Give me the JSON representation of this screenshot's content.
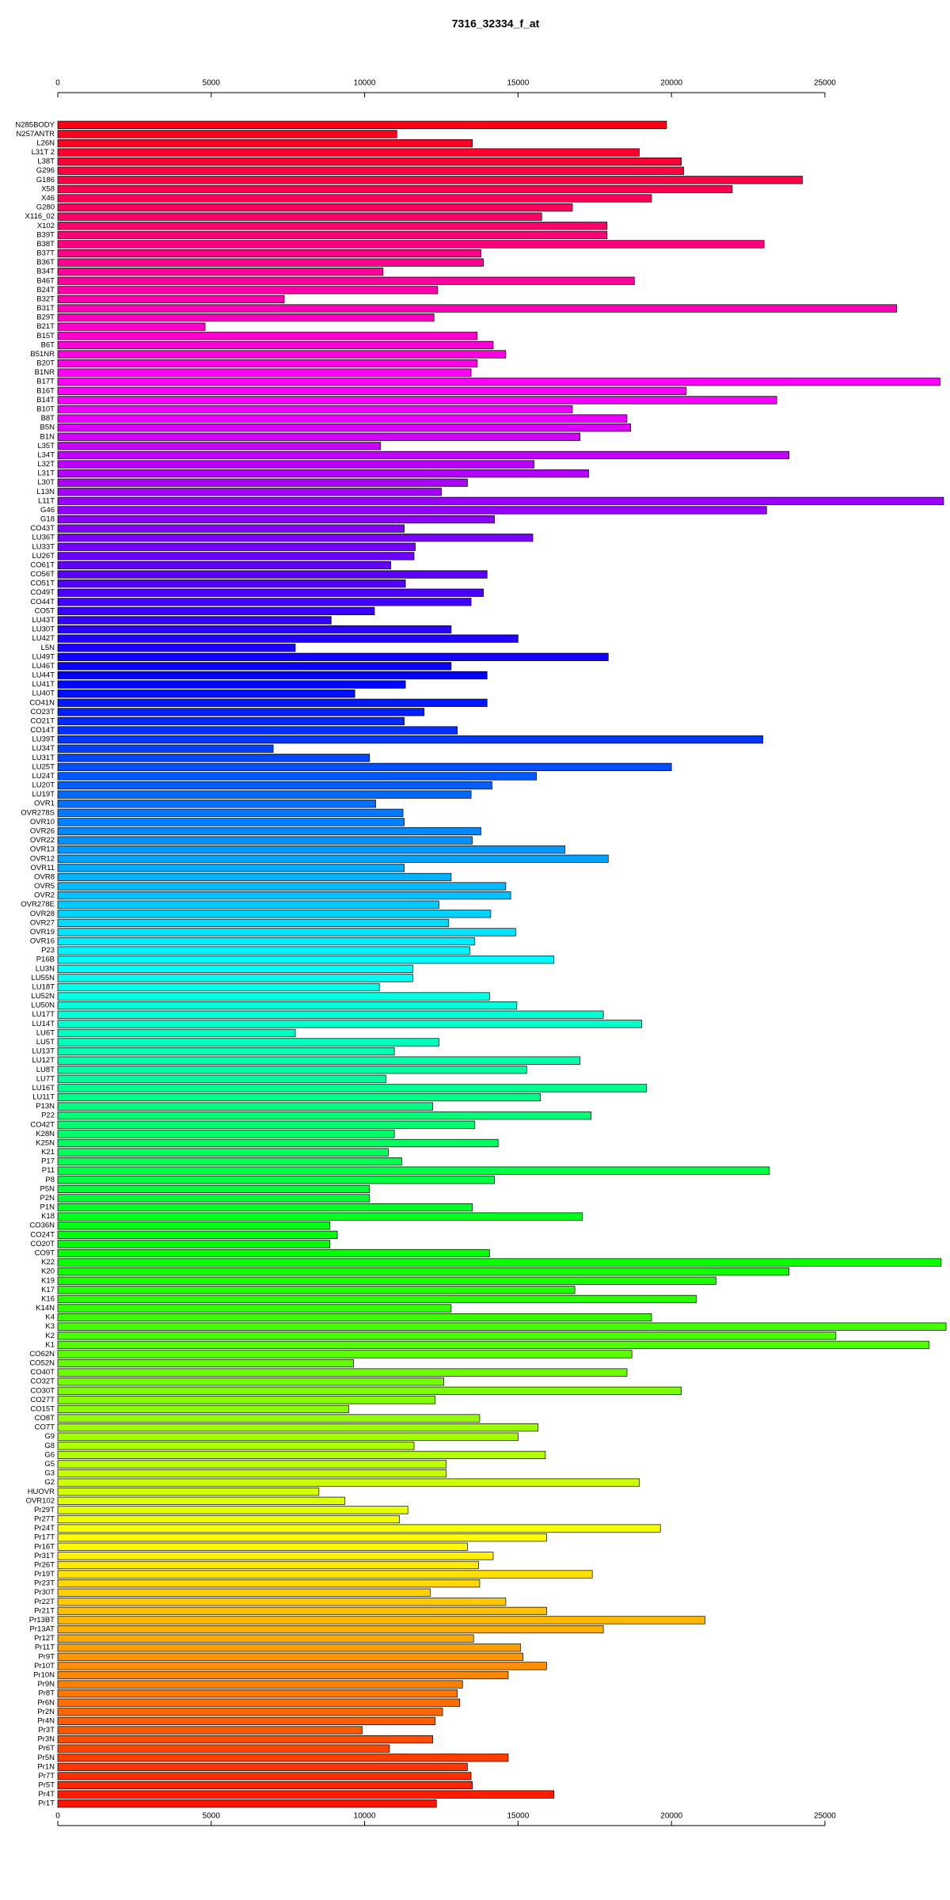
{
  "chart_data": {
    "type": "barh",
    "title": "7316_32334_f_at",
    "categories": [
      "N285BODY",
      "N257ANTR",
      "L26N",
      "L31T 2",
      "L38T",
      "G296",
      "G186",
      "X58",
      "X46",
      "G280",
      "X116_02",
      "X102",
      "B39T",
      "B38T",
      "B37T",
      "B36T",
      "B34T",
      "B46T",
      "B24T",
      "B32T",
      "B31T",
      "B29T",
      "B21T",
      "B15T",
      "B6T",
      "B51NR",
      "B20T",
      "B1NR",
      "B17T",
      "B16T",
      "B14T",
      "B10T",
      "B8T",
      "B5N",
      "B1N",
      "L35T",
      "L34T",
      "L32T",
      "L31T",
      "L30T",
      "L13N",
      "L11T",
      "G46",
      "G18",
      "CO43T",
      "LU36T",
      "LU33T",
      "LU26T",
      "CO61T",
      "CO56T",
      "CO51T",
      "CO49T",
      "CO44T",
      "CO5T",
      "LU43T",
      "LU30T",
      "LU42T",
      "L5N",
      "LU49T",
      "LU46T",
      "LU44T",
      "LU41T",
      "LU40T",
      "CO41N",
      "CO23T",
      "CO21T",
      "CO14T",
      "LU39T",
      "LU34T",
      "LU31T",
      "LU25T",
      "LU24T",
      "LU20T",
      "LU19T",
      "OVR1",
      "OVR278S",
      "OVR10",
      "OVR26",
      "OVR22",
      "OVR13",
      "OVR12",
      "OVR11",
      "OVR8",
      "OVR5",
      "OVR2",
      "OVR278E",
      "OVR28",
      "OVR27",
      "OVR19",
      "OVR16",
      "P23",
      "P16B",
      "LU3N",
      "LU55N",
      "LU18T",
      "LU52N",
      "LU50N",
      "LU17T",
      "LU14T",
      "LU6T",
      "LU5T",
      "LU13T",
      "LU12T",
      "LU8T",
      "LU7T",
      "LU16T",
      "LU11T",
      "P13N",
      "P22",
      "CO42T",
      "K28N",
      "K25N",
      "K21",
      "P17",
      "P11",
      "P8",
      "P5N",
      "P2N",
      "P1N",
      "K18",
      "CO36N",
      "CO24T",
      "CO20T",
      "CO9T",
      "K22",
      "K20",
      "K19",
      "K17",
      "K16",
      "K14N",
      "K4",
      "K3",
      "K2",
      "K1",
      "CO62N",
      "CO52N",
      "CO40T",
      "CO32T",
      "CO30T",
      "CO27T",
      "CO15T",
      "CO8T",
      "CO7T",
      "G9",
      "G8",
      "G6",
      "G5",
      "G3",
      "G2",
      "HUOVR",
      "OVR102",
      "Pr29T",
      "Pr27T",
      "Pr24T",
      "Pr17T",
      "Pr16T",
      "Pr31T",
      "Pr26T",
      "Pr19T",
      "Pr23T",
      "Pr30T",
      "Pr22T",
      "Pr21T",
      "Pr13BT",
      "Pr13AT",
      "Pr12T",
      "Pr11T",
      "Pr9T",
      "Pr10T",
      "Pr10N",
      "Pr9N",
      "Pr8T",
      "Pr6N",
      "Pr2N",
      "Pr4N",
      "Pr3T",
      "Pr3N",
      "Pr6T",
      "Pr5N",
      "Pr1N",
      "Pr7T",
      "Pr5T",
      "Pr4T",
      "Pr1T"
    ],
    "values": [
      19840,
      11050,
      13510,
      18950,
      20320,
      20400,
      24270,
      21980,
      19350,
      16770,
      15770,
      17900,
      17900,
      23020,
      13790,
      13870,
      10600,
      18790,
      12380,
      7380,
      27340,
      12260,
      4800,
      13670,
      14190,
      14600,
      13670,
      13470,
      28750,
      20480,
      23430,
      16770,
      18550,
      18670,
      17020,
      10520,
      23830,
      15520,
      17300,
      13350,
      12500,
      28870,
      23100,
      14230,
      11290,
      15480,
      11650,
      11610,
      10850,
      13990,
      11330,
      13870,
      13470,
      10320,
      8910,
      12820,
      15000,
      7740,
      17940,
      12820,
      13990,
      11330,
      9680,
      13990,
      11940,
      11290,
      13020,
      22980,
      7020,
      10160,
      20000,
      15600,
      14150,
      13470,
      10360,
      11250,
      11290,
      13790,
      13510,
      16530,
      17940,
      11290,
      12820,
      14600,
      14760,
      12420,
      14110,
      12740,
      14920,
      13590,
      13430,
      16170,
      11570,
      11570,
      10480,
      14070,
      14960,
      17780,
      19030,
      7740,
      12420,
      10970,
      17020,
      15280,
      10690,
      19190,
      15730,
      12220,
      17380,
      13590,
      10970,
      14350,
      10770,
      11210,
      23190,
      14230,
      10160,
      10160,
      13510,
      17100,
      8870,
      9110,
      8870,
      14070,
      28790,
      23830,
      21450,
      16850,
      20810,
      12820,
      19350,
      28950,
      25360,
      28390,
      18710,
      9640,
      18550,
      12580,
      20320,
      12300,
      9480,
      13750,
      15650,
      15000,
      11610,
      15890,
      12660,
      12660,
      18950,
      8510,
      9350,
      11410,
      11130,
      19640,
      15930,
      13350,
      14190,
      13710,
      17420,
      13750,
      12140,
      14600,
      15930,
      21090,
      17780,
      13550,
      15080,
      15160,
      15930,
      14680,
      13190,
      13020,
      13100,
      12540,
      12300,
      9920,
      12220,
      10810,
      14680,
      13350,
      13470,
      13510,
      16170,
      12340
    ],
    "xlim": [
      0,
      29000
    ],
    "xticks": [
      0,
      5000,
      10000,
      15000,
      20000,
      25000
    ],
    "colors": {
      "scheme": "rainbow",
      "hue_start": 355,
      "hue_end": 5
    }
  }
}
